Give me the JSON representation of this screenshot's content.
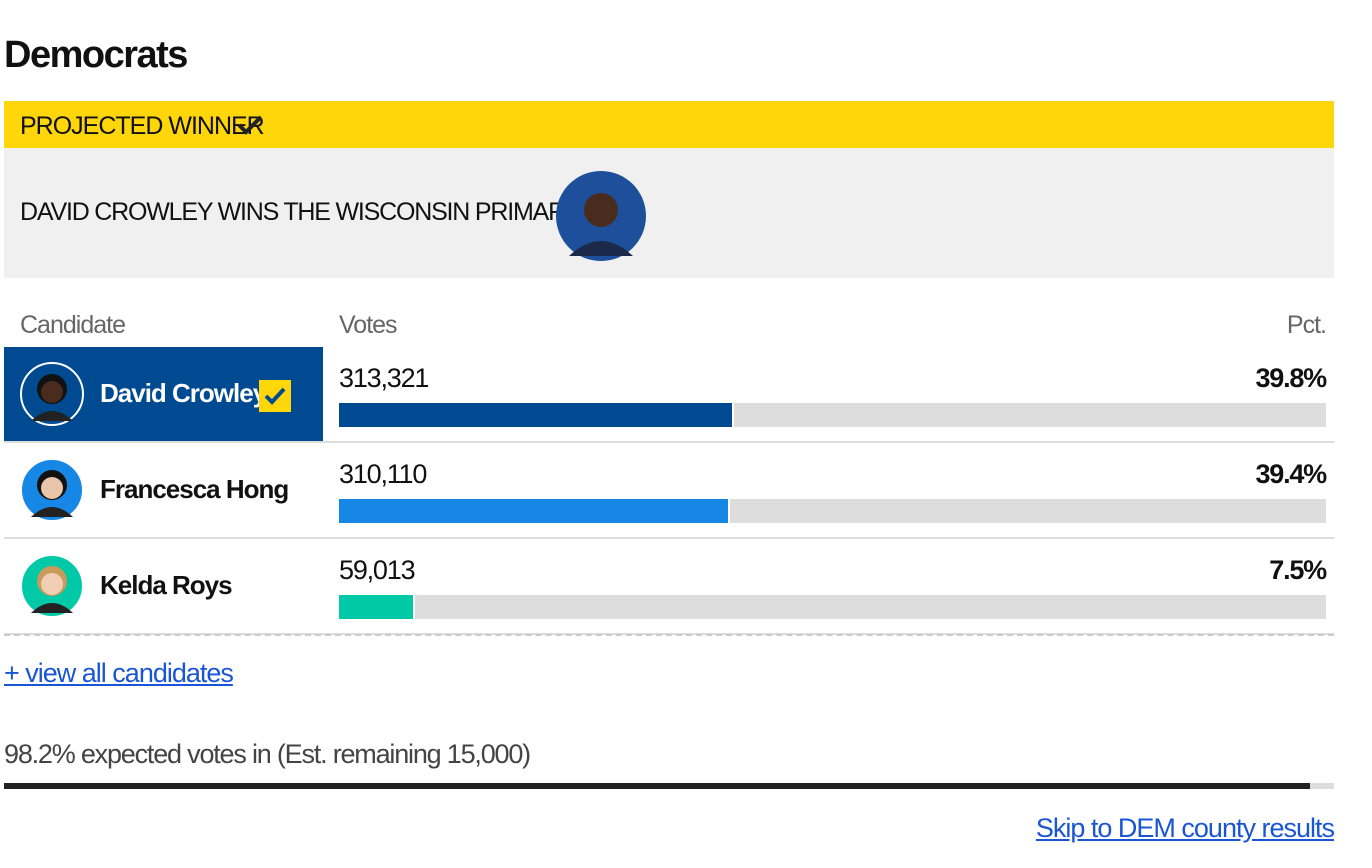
{
  "heading": "Democrats",
  "banner": {
    "label": "PROJECTED WINNER"
  },
  "winner": {
    "headline": "DAVID CROWLEY WINS THE WISCONSIN PRIMARY"
  },
  "table": {
    "columns": [
      "Candidate",
      "Votes",
      "Pct."
    ],
    "rows": [
      {
        "name": "David Crowley",
        "votes": "313,321",
        "pct": {
          "value": 39.8,
          "label": "39.8%"
        },
        "color": "#004a91",
        "winner": true
      },
      {
        "name": "Francesca Hong",
        "votes": "310,110",
        "pct": {
          "value": 39.4,
          "label": "39.4%"
        },
        "color": "#1787e6",
        "winner": false
      },
      {
        "name": "Kelda Roys",
        "votes": "59,013",
        "pct": {
          "value": 7.5,
          "label": "7.5%"
        },
        "color": "#00c9a7",
        "winner": false
      }
    ]
  },
  "links": {
    "view_all": "+ view all candidates",
    "skip": "Skip to DEM county results"
  },
  "reporting": {
    "value": 98.2,
    "label": "98.2% expected votes in (Est. remaining 15,000)"
  }
}
